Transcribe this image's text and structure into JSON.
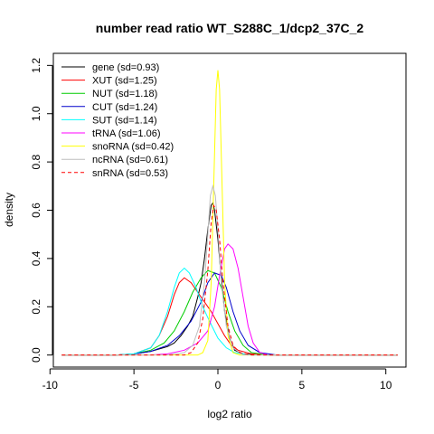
{
  "chart_data": {
    "type": "line",
    "title": "number read ratio WT_S288C_1/dcp2_37C_2",
    "xlabel": "log2 ratio",
    "ylabel": "density",
    "xlim": [
      -9.8,
      11.2
    ],
    "ylim": [
      -0.05,
      1.25
    ],
    "x_ticks": [
      -10,
      -5,
      0,
      5,
      10
    ],
    "x_tick_labels": [
      "-10",
      "-5",
      "0",
      "5",
      "10"
    ],
    "y_ticks": [
      0.0,
      0.2,
      0.4,
      0.6,
      0.8,
      1.0,
      1.2
    ],
    "y_tick_labels": [
      "0.0",
      "0.2",
      "0.4",
      "0.6",
      "0.8",
      "1.0",
      "1.2"
    ],
    "grid": false,
    "legend_position": "top-left",
    "series": [
      {
        "name": "gene (sd=0.93)",
        "color": "#000000",
        "dash": false,
        "points": [
          [
            -9.3,
            0
          ],
          [
            -6,
            0
          ],
          [
            -5,
            0.005
          ],
          [
            -4,
            0.015
          ],
          [
            -3,
            0.035
          ],
          [
            -2.6,
            0.05
          ],
          [
            -2.2,
            0.08
          ],
          [
            -1.8,
            0.12
          ],
          [
            -1.5,
            0.16
          ],
          [
            -1.2,
            0.24
          ],
          [
            -1.0,
            0.3
          ],
          [
            -0.8,
            0.4
          ],
          [
            -0.6,
            0.52
          ],
          [
            -0.4,
            0.62
          ],
          [
            -0.3,
            0.63
          ],
          [
            -0.2,
            0.6
          ],
          [
            0,
            0.48
          ],
          [
            0.2,
            0.32
          ],
          [
            0.4,
            0.18
          ],
          [
            0.7,
            0.07
          ],
          [
            1,
            0.02
          ],
          [
            1.5,
            0.005
          ],
          [
            3,
            0
          ],
          [
            10.7,
            0
          ]
        ]
      },
      {
        "name": "XUT (sd=1.25)",
        "color": "#ff0000",
        "dash": false,
        "points": [
          [
            -9.3,
            0
          ],
          [
            -6,
            0
          ],
          [
            -5,
            0.005
          ],
          [
            -4,
            0.03
          ],
          [
            -3.5,
            0.08
          ],
          [
            -3,
            0.16
          ],
          [
            -2.6,
            0.25
          ],
          [
            -2.3,
            0.3
          ],
          [
            -2.0,
            0.32
          ],
          [
            -1.6,
            0.3
          ],
          [
            -1.2,
            0.26
          ],
          [
            -0.8,
            0.22
          ],
          [
            -0.4,
            0.18
          ],
          [
            0,
            0.13
          ],
          [
            0.4,
            0.08
          ],
          [
            0.8,
            0.04
          ],
          [
            1.2,
            0.02
          ],
          [
            2,
            0.005
          ],
          [
            3,
            0
          ],
          [
            10.7,
            0
          ]
        ]
      },
      {
        "name": "NUT (sd=1.18)",
        "color": "#00cc00",
        "dash": false,
        "points": [
          [
            -9.3,
            0
          ],
          [
            -6,
            0
          ],
          [
            -5,
            0.005
          ],
          [
            -4,
            0.02
          ],
          [
            -3.2,
            0.05
          ],
          [
            -2.6,
            0.1
          ],
          [
            -2,
            0.18
          ],
          [
            -1.5,
            0.26
          ],
          [
            -1.0,
            0.32
          ],
          [
            -0.6,
            0.35
          ],
          [
            -0.2,
            0.34
          ],
          [
            0.2,
            0.28
          ],
          [
            0.6,
            0.18
          ],
          [
            1.0,
            0.1
          ],
          [
            1.5,
            0.04
          ],
          [
            2,
            0.01
          ],
          [
            3,
            0
          ],
          [
            10.7,
            0
          ]
        ]
      },
      {
        "name": "CUT (sd=1.24)",
        "color": "#0000cc",
        "dash": false,
        "points": [
          [
            -9.3,
            0
          ],
          [
            -6,
            0
          ],
          [
            -5,
            0.005
          ],
          [
            -4,
            0.015
          ],
          [
            -3,
            0.04
          ],
          [
            -2.3,
            0.08
          ],
          [
            -1.6,
            0.14
          ],
          [
            -1.0,
            0.22
          ],
          [
            -0.6,
            0.3
          ],
          [
            -0.2,
            0.34
          ],
          [
            0.2,
            0.33
          ],
          [
            0.5,
            0.28
          ],
          [
            0.9,
            0.18
          ],
          [
            1.3,
            0.1
          ],
          [
            1.8,
            0.04
          ],
          [
            2.5,
            0.01
          ],
          [
            3.5,
            0
          ],
          [
            10.7,
            0
          ]
        ]
      },
      {
        "name": "SUT (sd=1.14)",
        "color": "#00ffff",
        "dash": false,
        "points": [
          [
            -9.3,
            0
          ],
          [
            -6,
            0
          ],
          [
            -5,
            0.005
          ],
          [
            -4,
            0.03
          ],
          [
            -3.5,
            0.08
          ],
          [
            -3,
            0.18
          ],
          [
            -2.6,
            0.28
          ],
          [
            -2.3,
            0.34
          ],
          [
            -2.0,
            0.36
          ],
          [
            -1.7,
            0.34
          ],
          [
            -1.3,
            0.28
          ],
          [
            -0.9,
            0.2
          ],
          [
            -0.5,
            0.14
          ],
          [
            0,
            0.07
          ],
          [
            0.5,
            0.03
          ],
          [
            1,
            0.01
          ],
          [
            2,
            0
          ],
          [
            10.7,
            0
          ]
        ]
      },
      {
        "name": "tRNA (sd=1.06)",
        "color": "#ff00ff",
        "dash": false,
        "points": [
          [
            -9.3,
            0
          ],
          [
            -4,
            0
          ],
          [
            -3,
            0.005
          ],
          [
            -2,
            0.02
          ],
          [
            -1.2,
            0.05
          ],
          [
            -0.6,
            0.1
          ],
          [
            -0.2,
            0.2
          ],
          [
            0.1,
            0.33
          ],
          [
            0.4,
            0.44
          ],
          [
            0.6,
            0.46
          ],
          [
            0.9,
            0.44
          ],
          [
            1.2,
            0.36
          ],
          [
            1.5,
            0.24
          ],
          [
            1.8,
            0.12
          ],
          [
            2.1,
            0.05
          ],
          [
            2.5,
            0.01
          ],
          [
            3,
            0
          ],
          [
            10.7,
            0
          ]
        ]
      },
      {
        "name": "snoRNA (sd=0.42)",
        "color": "#ffff00",
        "dash": false,
        "points": [
          [
            -9.3,
            0
          ],
          [
            -1.2,
            0
          ],
          [
            -0.9,
            0.01
          ],
          [
            -0.6,
            0.06
          ],
          [
            -0.4,
            0.3
          ],
          [
            -0.25,
            0.7
          ],
          [
            -0.1,
            1.1
          ],
          [
            0,
            1.18
          ],
          [
            0.1,
            1.1
          ],
          [
            0.25,
            0.7
          ],
          [
            0.4,
            0.3
          ],
          [
            0.6,
            0.08
          ],
          [
            0.9,
            0.01
          ],
          [
            1.3,
            0
          ],
          [
            10.7,
            0
          ]
        ]
      },
      {
        "name": "ncRNA (sd=0.61)",
        "color": "#bebebe",
        "dash": false,
        "points": [
          [
            -9.3,
            0
          ],
          [
            -3,
            0
          ],
          [
            -2,
            0.01
          ],
          [
            -1.5,
            0.04
          ],
          [
            -1.1,
            0.12
          ],
          [
            -0.8,
            0.3
          ],
          [
            -0.6,
            0.5
          ],
          [
            -0.45,
            0.66
          ],
          [
            -0.3,
            0.7
          ],
          [
            -0.15,
            0.66
          ],
          [
            0,
            0.52
          ],
          [
            0.2,
            0.3
          ],
          [
            0.5,
            0.12
          ],
          [
            0.9,
            0.03
          ],
          [
            1.5,
            0
          ],
          [
            10.7,
            0
          ]
        ]
      },
      {
        "name": "snRNA (sd=0.53)",
        "color": "#ff0000",
        "dash": true,
        "points": [
          [
            -9.3,
            0
          ],
          [
            -2,
            0
          ],
          [
            -1.6,
            0.01
          ],
          [
            -1.2,
            0.05
          ],
          [
            -0.9,
            0.15
          ],
          [
            -0.6,
            0.35
          ],
          [
            -0.4,
            0.55
          ],
          [
            -0.25,
            0.62
          ],
          [
            -0.1,
            0.6
          ],
          [
            0.1,
            0.48
          ],
          [
            0.3,
            0.3
          ],
          [
            0.6,
            0.12
          ],
          [
            0.9,
            0.04
          ],
          [
            1.3,
            0.01
          ],
          [
            2,
            0
          ],
          [
            10.7,
            0
          ]
        ]
      }
    ]
  }
}
